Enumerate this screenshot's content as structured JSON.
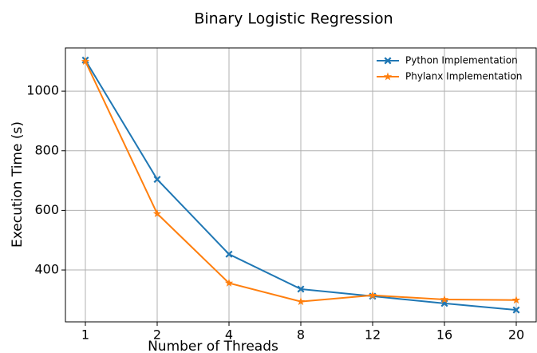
{
  "chart_data": {
    "type": "line",
    "title": "Binary Logistic Regression",
    "x_label": "Number of Threads",
    "y_label": "Execution Time (s)",
    "categories": [
      "1",
      "2",
      "4",
      "8",
      "12",
      "16",
      "20"
    ],
    "series": [
      {
        "name": "Python Implementation",
        "color": "#1f77b4",
        "marker": "X",
        "values": [
          1104,
          704,
          453,
          336,
          312,
          288,
          266
        ]
      },
      {
        "name": "Phylanx Implementation",
        "color": "#ff7f0e",
        "marker": "star",
        "values": [
          1100,
          589,
          356,
          294,
          315,
          301,
          299
        ]
      }
    ],
    "ylim": [
      226,
      1145
    ],
    "yticks": [
      400,
      600,
      800,
      1000
    ],
    "grid": true,
    "legend": "upper right"
  }
}
